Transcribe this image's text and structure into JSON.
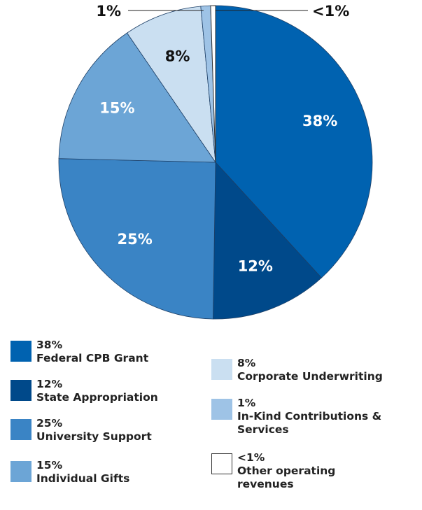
{
  "chart_data": {
    "type": "pie",
    "categories": [
      "Federal CPB Grant",
      "State Appropriation",
      "University Support",
      "Individual Gifts",
      "Corporate Underwriting",
      "In-Kind Contributions & Services",
      "Other operating revenues"
    ],
    "values": [
      38,
      12,
      25,
      15,
      8,
      1,
      0.5
    ],
    "value_labels": [
      "38%",
      "12%",
      "25%",
      "15%",
      "8%",
      "1%",
      "<1%"
    ],
    "colors": [
      "#0062b0",
      "#00498a",
      "#3a84c5",
      "#6ca5d6",
      "#cadff1",
      "#9ec3e6",
      "#ffffff"
    ]
  }
}
